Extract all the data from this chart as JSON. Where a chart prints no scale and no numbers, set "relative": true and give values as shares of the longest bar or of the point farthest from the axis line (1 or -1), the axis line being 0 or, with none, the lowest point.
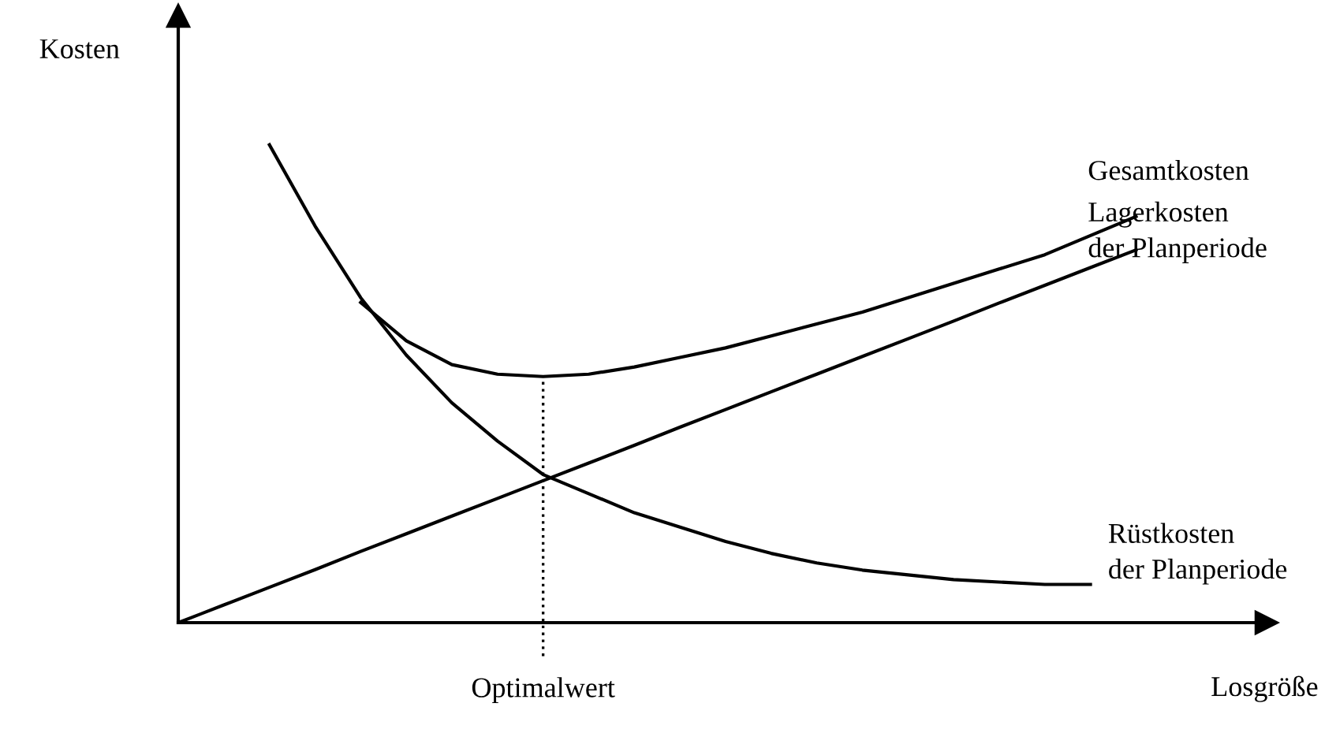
{
  "chart_data": {
    "type": "line",
    "relative": true,
    "xlabel": "Losgröße",
    "ylabel": "Kosten",
    "marker": "none",
    "annotations": [
      "Optimalwert"
    ],
    "line_style": "solid",
    "categories": [
      null,
      null,
      null,
      null,
      null,
      null,
      null,
      null,
      null,
      null,
      null,
      null,
      null,
      null,
      null,
      null,
      null,
      null,
      null,
      null,
      null,
      null
    ],
    "series": [
      {
        "name": "Gesamtkosten",
        "color": "#000000",
        "values": [
          null,
          null,
          null,
          null,
          0.67,
          0.59,
          0.54,
          0.52,
          0.515,
          0.52,
          0.535,
          0.555,
          0.575,
          0.6,
          0.625,
          0.65,
          0.68,
          0.71,
          0.74,
          0.77,
          0.81,
          0.85
        ]
      },
      {
        "name": "Lagerkosten\nder Planperiode",
        "color": "#000000",
        "values": [
          0,
          0.037,
          0.074,
          0.111,
          0.149,
          0.186,
          0.223,
          0.26,
          0.297,
          0.334,
          0.371,
          0.409,
          0.446,
          0.483,
          0.52,
          0.557,
          0.594,
          0.631,
          0.669,
          0.706,
          0.743,
          0.78
        ]
      },
      {
        "name": "Rüstkosten\nder Planperiode",
        "color": "#000000",
        "values": [
          null,
          null,
          1.0,
          0.83,
          0.68,
          0.56,
          0.46,
          0.38,
          0.31,
          0.27,
          0.23,
          0.2,
          0.17,
          0.145,
          0.125,
          0.11,
          0.1,
          0.09,
          0.085,
          0.08,
          0.08,
          null
        ]
      }
    ]
  }
}
